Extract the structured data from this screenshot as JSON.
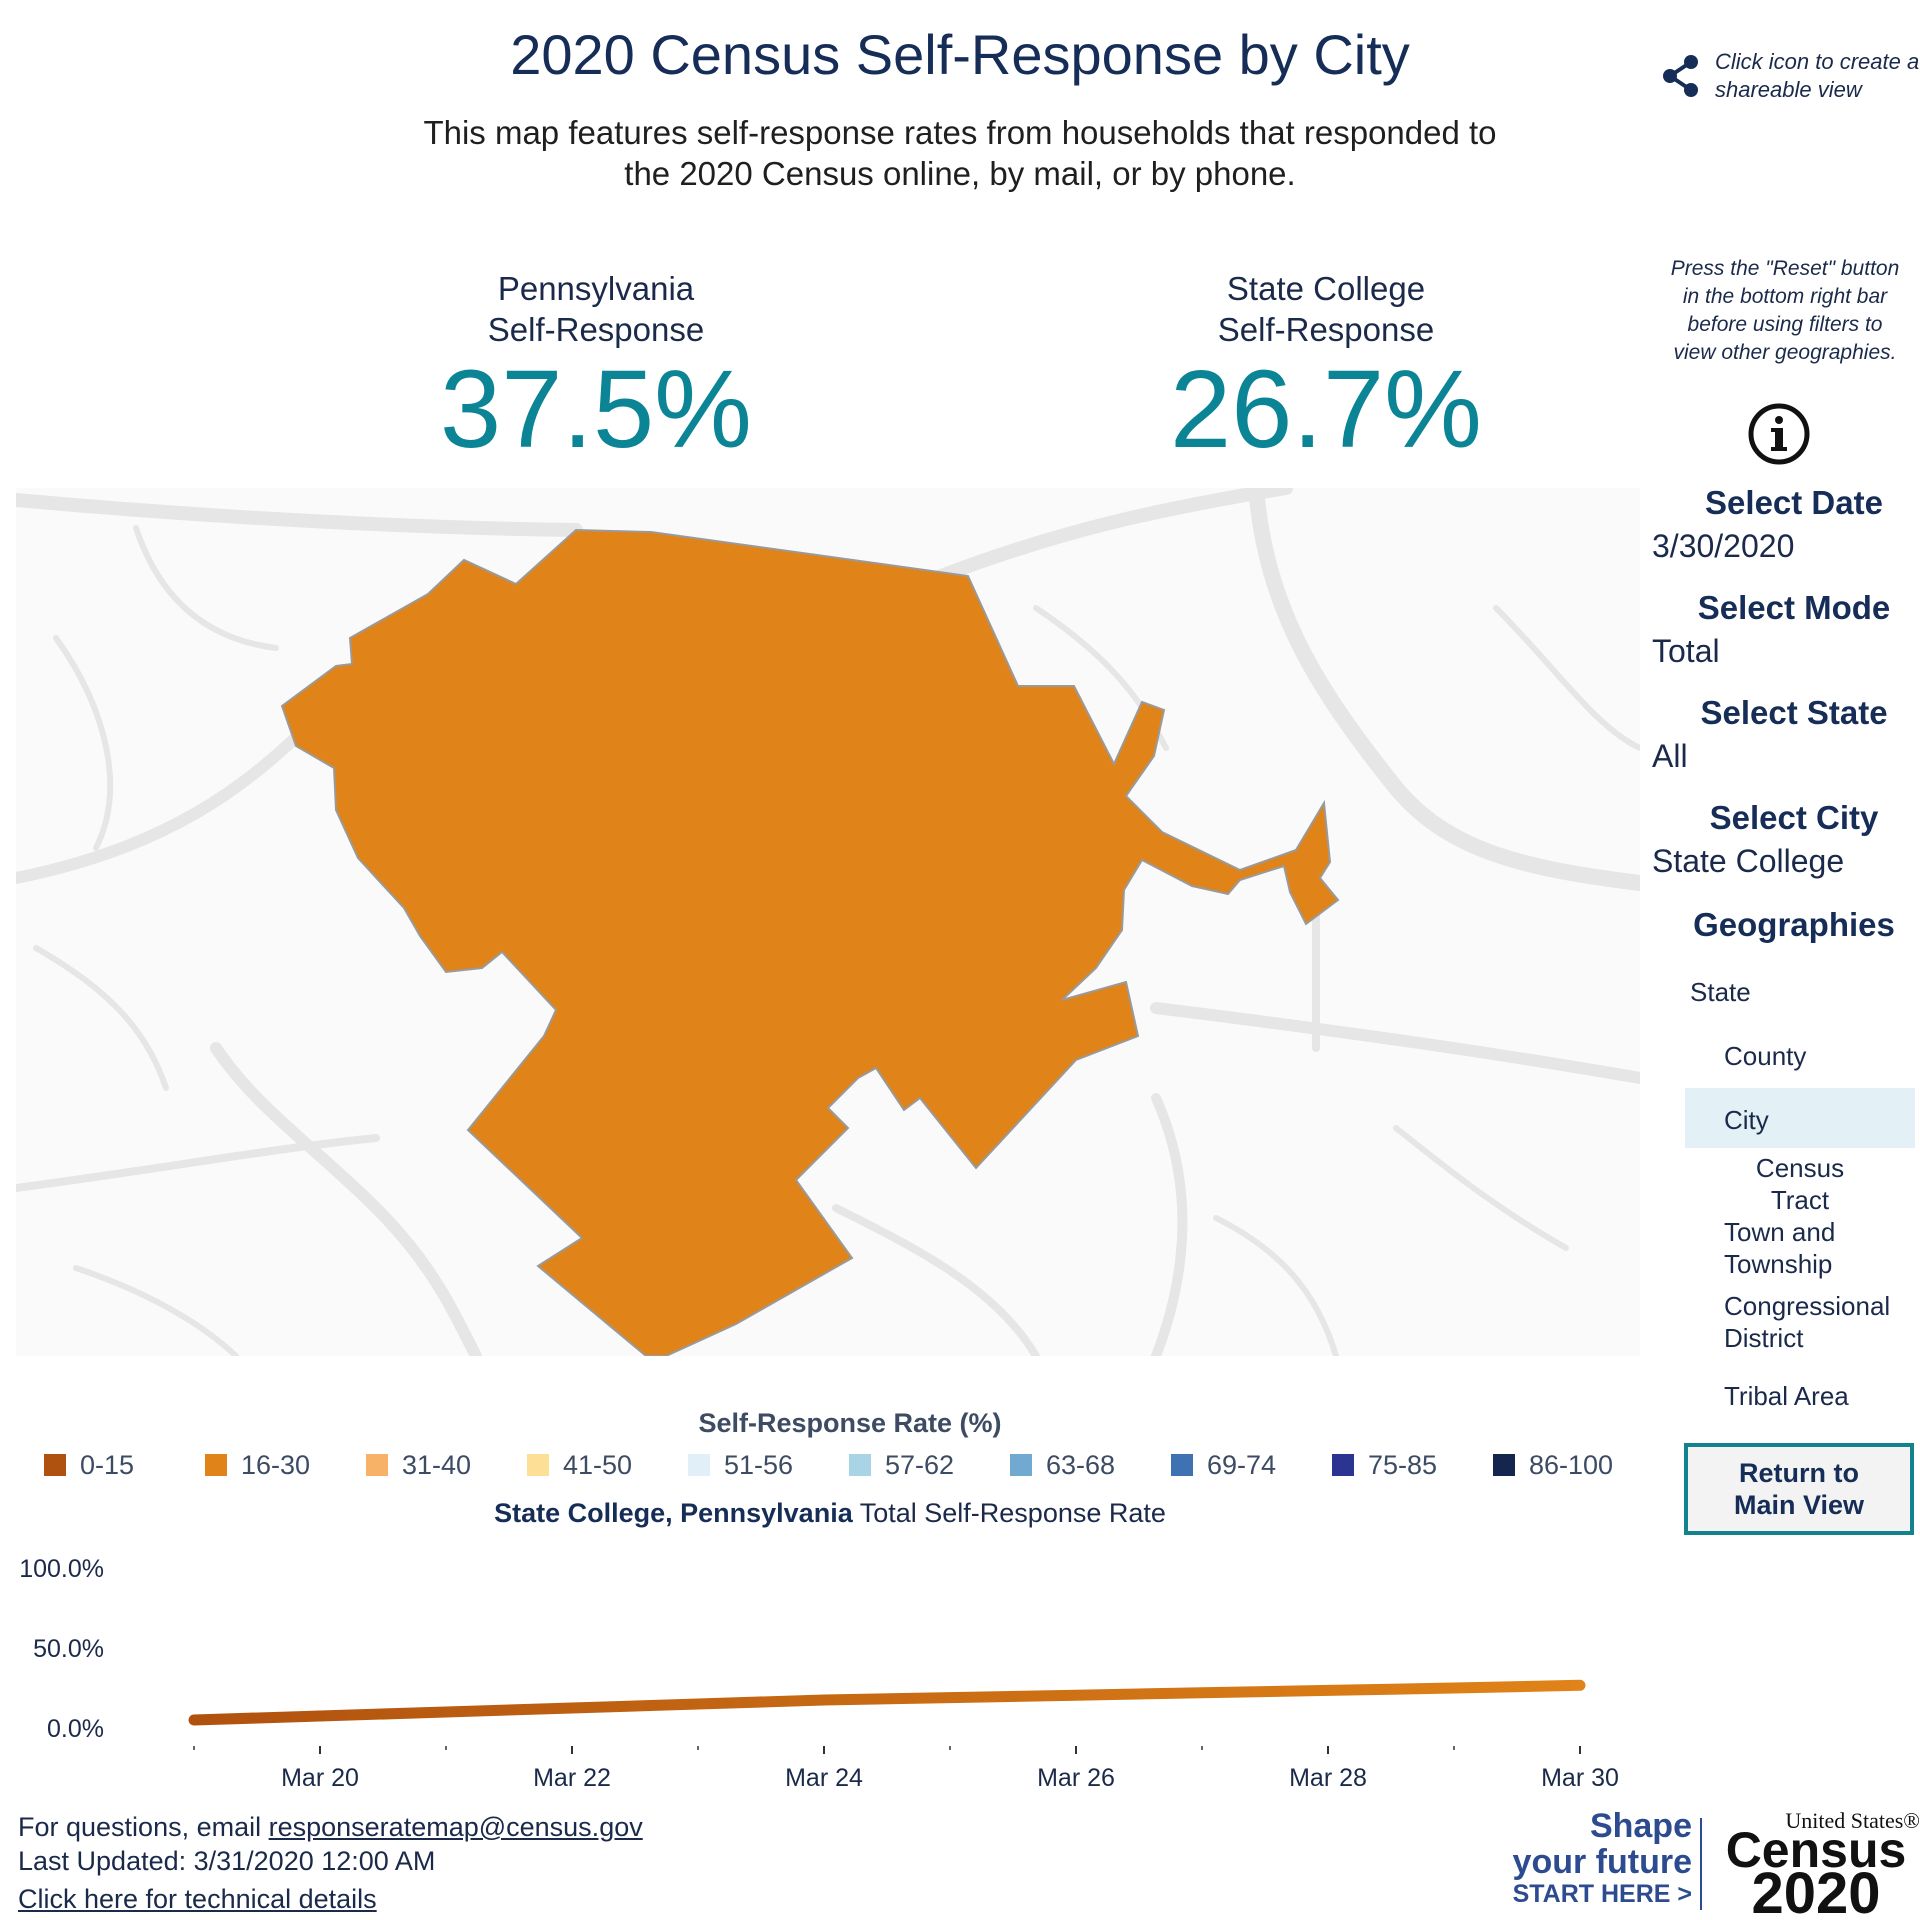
{
  "header": {
    "title": "2020 Census Self-Response by City",
    "subtitle": "This map features self-response rates from households that responded to the 2020 Census online, by mail, or by phone."
  },
  "share": {
    "text": "Click icon to create a shareable view",
    "icon": "share-icon"
  },
  "stats": {
    "state": {
      "label_line1": "Pennsylvania",
      "label_line2": "Self-Response",
      "value": "37.5%"
    },
    "city": {
      "label_line1": "State College",
      "label_line2": "Self-Response",
      "value": "26.7%"
    }
  },
  "hint": {
    "text": "Press the \"Reset\" button in the bottom right bar before using filters to view other geographies.",
    "icon": "info-icon"
  },
  "filters": {
    "date": {
      "label": "Select Date",
      "value": "3/30/2020"
    },
    "mode": {
      "label": "Select Mode",
      "value": "Total"
    },
    "state": {
      "label": "Select State",
      "value": "All"
    },
    "city": {
      "label": "Select City",
      "value": "State College"
    }
  },
  "geographies": {
    "title": "Geographies",
    "items": [
      "State",
      "County",
      "City",
      "Census Tract",
      "Town and Township",
      "Congressional District",
      "Tribal Area"
    ],
    "items_wrapped": {
      "census_tract_1": "Census",
      "census_tract_2": "Tract",
      "town_1": "Town and",
      "town_2": "Township",
      "cong_1": "Congressional",
      "cong_2": "District"
    },
    "selected": "City"
  },
  "return_button": {
    "line1": "Return to",
    "line2": "Main View"
  },
  "map": {
    "region_color": "#e08318",
    "region": "State College"
  },
  "legend": {
    "title": "Self-Response Rate (%)",
    "items": [
      {
        "label": "0-15",
        "color": "#b0520f"
      },
      {
        "label": "16-30",
        "color": "#e08318"
      },
      {
        "label": "31-40",
        "color": "#f7b268"
      },
      {
        "label": "41-50",
        "color": "#fddf96"
      },
      {
        "label": "51-56",
        "color": "#e1f0f8"
      },
      {
        "label": "57-62",
        "color": "#a8d4e6"
      },
      {
        "label": "63-68",
        "color": "#72a9d0"
      },
      {
        "label": "69-74",
        "color": "#3f72b3"
      },
      {
        "label": "75-85",
        "color": "#2c3491"
      },
      {
        "label": "86-100",
        "color": "#14264e"
      }
    ]
  },
  "line_chart_title": {
    "place": "State College, Pennsylvania",
    "rest": " Total Self-Response Rate"
  },
  "chart_data": {
    "type": "line",
    "title": "State College, Pennsylvania Total Self-Response Rate",
    "x": [
      "2020-03-19",
      "2020-03-20",
      "2020-03-21",
      "2020-03-22",
      "2020-03-23",
      "2020-03-24",
      "2020-03-25",
      "2020-03-26",
      "2020-03-27",
      "2020-03-28",
      "2020-03-29",
      "2020-03-30"
    ],
    "xticks": [
      "Mar 20",
      "Mar 22",
      "Mar 24",
      "Mar 26",
      "Mar 28",
      "Mar 30"
    ],
    "series": [
      {
        "values": [
          5.0,
          7.5,
          10.0,
          12.5,
          15.0,
          17.5,
          19.0,
          20.5,
          22.0,
          23.5,
          25.0,
          26.7
        ]
      }
    ],
    "ylim": [
      0,
      100
    ],
    "yticks": [
      "100.0%",
      "50.0%",
      "0.0%"
    ],
    "line_color_start": "#b0520f",
    "line_color_end": "#e08318",
    "grid": false
  },
  "footer": {
    "questions_prefix": "For questions, email ",
    "email": "responseratemap@census.gov",
    "updated": "Last Updated: 3/31/2020 12:00 AM",
    "technical": "Click here for technical details"
  },
  "brand": {
    "shape1": "Shape",
    "shape2": "your future",
    "start": "START HERE >",
    "us": "United States®",
    "census": "Census",
    "year": "2020"
  }
}
